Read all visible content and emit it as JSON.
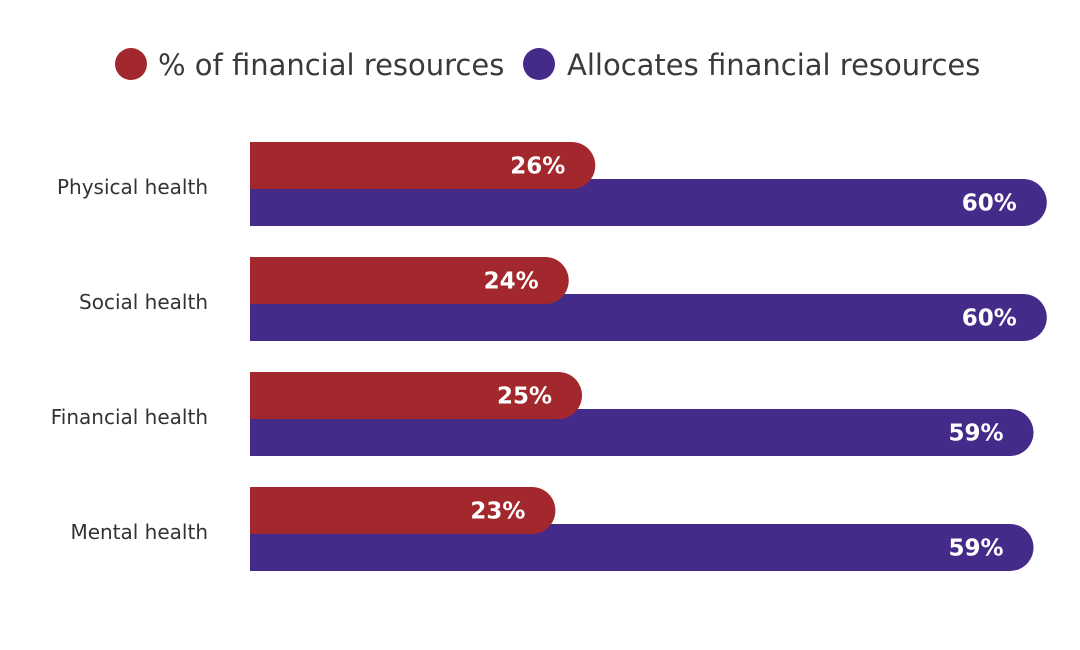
{
  "legend": {
    "items": [
      {
        "label": "% of financial resources",
        "color": "#a3282e"
      },
      {
        "label": "Allocates financial resources",
        "color": "#452b89"
      }
    ]
  },
  "chart_data": {
    "type": "bar",
    "orientation": "horizontal",
    "categories": [
      "Physical health",
      "Social health",
      "Financial health",
      "Mental health"
    ],
    "series": [
      {
        "name": "% of financial resources",
        "color": "#a3282e",
        "values": [
          26,
          24,
          25,
          23
        ],
        "value_labels": [
          "26%",
          "24%",
          "25%",
          "23%"
        ]
      },
      {
        "name": "Allocates financial resources",
        "color": "#452b89",
        "values": [
          60,
          60,
          59,
          59
        ],
        "value_labels": [
          "60%",
          "60%",
          "59%",
          "59%"
        ]
      }
    ],
    "unit": "%",
    "legend_position": "top",
    "grid": false
  }
}
